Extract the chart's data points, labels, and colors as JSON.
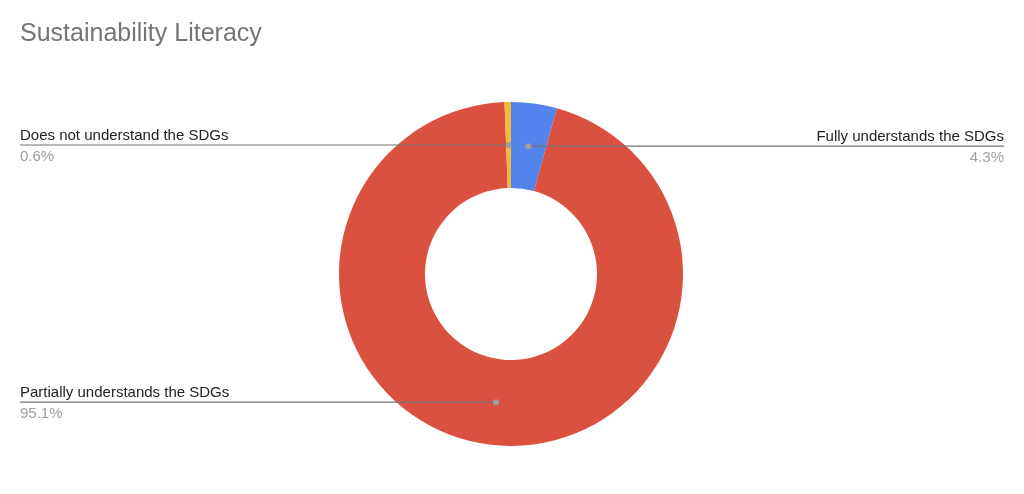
{
  "chart_data": {
    "type": "donut",
    "title": "Sustainability Literacy",
    "categories": [
      "Fully understands the SDGs",
      "Partially understands the SDGs",
      "Does not understand the SDGs"
    ],
    "values": [
      4.3,
      95.1,
      0.6
    ],
    "colors": [
      "#5383ec",
      "#da5140",
      "#f2b93b"
    ],
    "value_labels": [
      "4.3%",
      "95.1%",
      "0.6%"
    ]
  }
}
